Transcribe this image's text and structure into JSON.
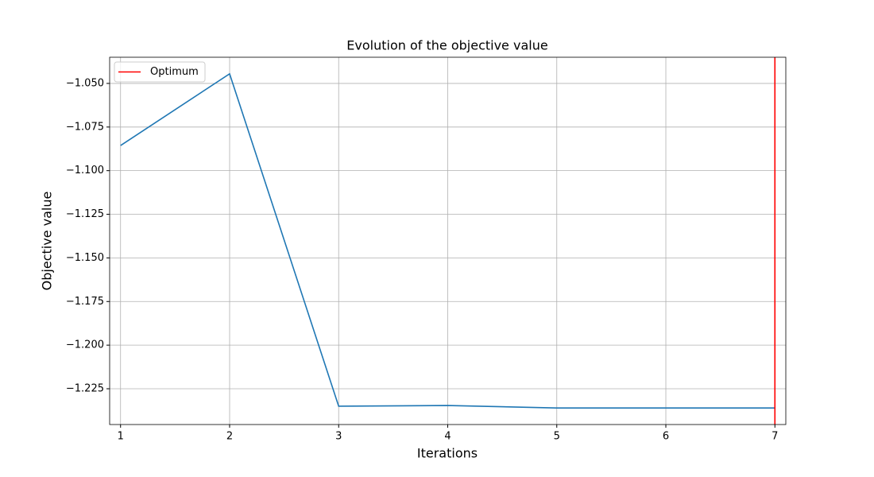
{
  "chart_data": {
    "type": "line",
    "title": "Evolution of the objective value",
    "xlabel": "Iterations",
    "ylabel": "Objective value",
    "x": [
      1,
      2,
      3,
      4,
      5,
      6,
      7
    ],
    "series": [
      {
        "name": null,
        "color": "#1f77b4",
        "values": [
          -1.0856,
          -1.0445,
          -1.235,
          -1.2346,
          -1.236,
          -1.236,
          -1.236
        ]
      }
    ],
    "vlines": [
      {
        "name": "Optimum",
        "x": 7,
        "color": "#ff0000"
      }
    ],
    "xlim": [
      0.9,
      7.1
    ],
    "xticks": [
      1,
      2,
      3,
      4,
      5,
      6,
      7
    ],
    "ylim": [
      -1.2455,
      -1.035
    ],
    "yticks": [
      {
        "value": -1.225,
        "label": "−1.225"
      },
      {
        "value": -1.2,
        "label": "−1.200"
      },
      {
        "value": -1.175,
        "label": "−1.175"
      },
      {
        "value": -1.15,
        "label": "−1.150"
      },
      {
        "value": -1.125,
        "label": "−1.125"
      },
      {
        "value": -1.1,
        "label": "−1.100"
      },
      {
        "value": -1.075,
        "label": "−1.075"
      },
      {
        "value": -1.05,
        "label": "−1.050"
      }
    ],
    "grid": true,
    "legend": "upper left"
  }
}
